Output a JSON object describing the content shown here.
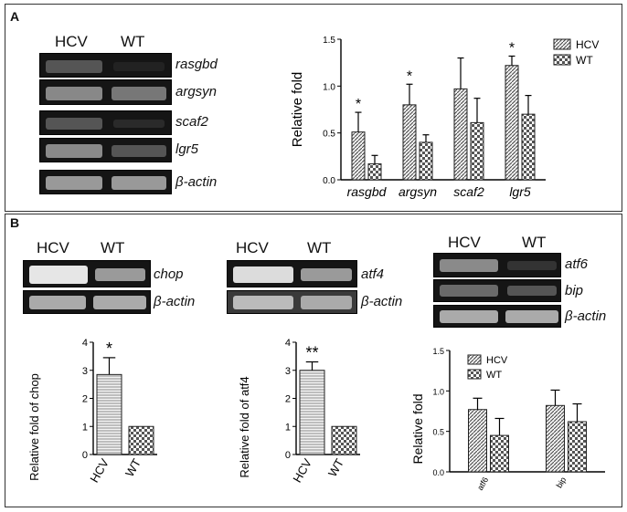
{
  "panels": {
    "a_label": "A",
    "b_label": "B"
  },
  "gels": {
    "a": {
      "hcv": "HCV",
      "wt": "WT",
      "genes": [
        "rasgbd",
        "argsyn",
        "scaf2",
        "lgr5",
        "β-actin"
      ]
    },
    "chop": {
      "hcv": "HCV",
      "wt": "WT",
      "genes": [
        "chop",
        "β-actin"
      ]
    },
    "atf4": {
      "hcv": "HCV",
      "wt": "WT",
      "genes": [
        "atf4",
        "β-actin"
      ]
    },
    "atf6": {
      "hcv": "HCV",
      "wt": "WT",
      "genes": [
        "atf6",
        "bip",
        "β-actin"
      ]
    }
  },
  "chart_data": [
    {
      "id": "a",
      "type": "bar",
      "categories": [
        "rasgbd",
        "argsyn",
        "scaf2",
        "lgr5"
      ],
      "series": [
        {
          "name": "HCV",
          "values": [
            0.51,
            0.8,
            0.97,
            1.22
          ],
          "errors": [
            0.21,
            0.22,
            0.33,
            0.1
          ],
          "pattern": "hatch"
        },
        {
          "name": "WT",
          "values": [
            0.17,
            0.4,
            0.61,
            0.7
          ],
          "errors": [
            0.09,
            0.08,
            0.26,
            0.2
          ],
          "pattern": "check"
        }
      ],
      "sig": [
        "*",
        "*",
        "",
        "*"
      ],
      "ylabel": "Relative fold",
      "ylim": [
        0,
        1.5
      ],
      "yticks": [
        "0.0",
        "0.5",
        "1.0",
        "1.5"
      ],
      "legend": "top-right"
    },
    {
      "id": "chop",
      "type": "bar",
      "categories": [
        "HCV",
        "WT"
      ],
      "values": [
        2.85,
        1.0
      ],
      "errors": [
        0.6,
        0
      ],
      "sig": [
        "*",
        ""
      ],
      "ylabel": "Relative fold of chop",
      "ylim": [
        0,
        4
      ],
      "yticks": [
        "0",
        "1",
        "2",
        "3",
        "4"
      ]
    },
    {
      "id": "atf4",
      "type": "bar",
      "categories": [
        "HCV",
        "WT"
      ],
      "values": [
        3.0,
        1.0
      ],
      "errors": [
        0.3,
        0
      ],
      "sig": [
        "**",
        ""
      ],
      "ylabel": "Relative fold of atf4",
      "ylim": [
        0,
        4
      ],
      "yticks": [
        "0",
        "1",
        "2",
        "3",
        "4"
      ]
    },
    {
      "id": "atf6",
      "type": "bar",
      "categories": [
        "atf6",
        "bip"
      ],
      "series": [
        {
          "name": "HCV",
          "values": [
            0.77,
            0.82
          ],
          "errors": [
            0.14,
            0.19
          ],
          "pattern": "hatch"
        },
        {
          "name": "WT",
          "values": [
            0.45,
            0.62
          ],
          "errors": [
            0.21,
            0.22
          ],
          "pattern": "check"
        }
      ],
      "ylabel": "Relative fold",
      "ylim": [
        0,
        1.5
      ],
      "yticks": [
        "0.0",
        "0.5",
        "1.0",
        "1.5"
      ],
      "legend": "top-left"
    }
  ]
}
